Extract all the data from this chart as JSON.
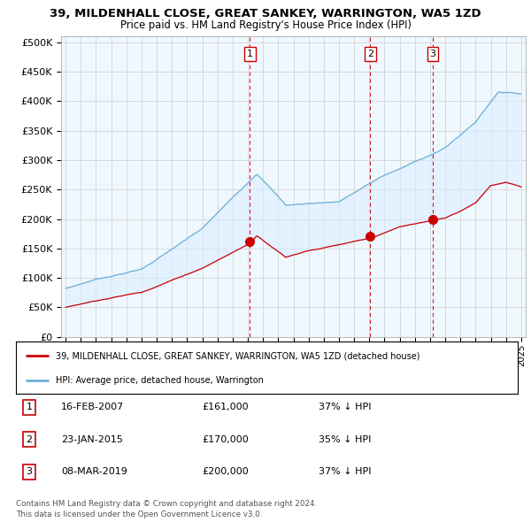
{
  "title_line1": "39, MILDENHALL CLOSE, GREAT SANKEY, WARRINGTON, WA5 1ZD",
  "title_line2": "Price paid vs. HM Land Registry's House Price Index (HPI)",
  "ylabel_ticks": [
    "£0",
    "£50K",
    "£100K",
    "£150K",
    "£200K",
    "£250K",
    "£300K",
    "£350K",
    "£400K",
    "£450K",
    "£500K"
  ],
  "ytick_values": [
    0,
    50000,
    100000,
    150000,
    200000,
    250000,
    300000,
    350000,
    400000,
    450000,
    500000
  ],
  "ylim": [
    0,
    510000
  ],
  "xlim_start": 1994.7,
  "xlim_end": 2025.3,
  "xtick_years": [
    1995,
    1996,
    1997,
    1998,
    1999,
    2000,
    2001,
    2002,
    2003,
    2004,
    2005,
    2006,
    2007,
    2008,
    2009,
    2010,
    2011,
    2012,
    2013,
    2014,
    2015,
    2016,
    2017,
    2018,
    2019,
    2020,
    2021,
    2022,
    2023,
    2024,
    2025
  ],
  "hpi_color": "#6baed6",
  "hpi_fill_color": "#ddeeff",
  "sale_color": "#cc0000",
  "vline_color": "#cc0000",
  "vline_style": "--",
  "sale_points": [
    {
      "year": 2007.13,
      "value": 161000,
      "label": "1"
    },
    {
      "year": 2015.07,
      "value": 170000,
      "label": "2"
    },
    {
      "year": 2019.19,
      "value": 200000,
      "label": "3"
    }
  ],
  "legend_sale_text": "39, MILDENHALL CLOSE, GREAT SANKEY, WARRINGTON, WA5 1ZD (detached house)",
  "legend_hpi_text": "HPI: Average price, detached house, Warrington",
  "table_rows": [
    {
      "num": "1",
      "date": "16-FEB-2007",
      "price": "£161,000",
      "hpi": "37% ↓ HPI"
    },
    {
      "num": "2",
      "date": "23-JAN-2015",
      "price": "£170,000",
      "hpi": "35% ↓ HPI"
    },
    {
      "num": "3",
      "date": "08-MAR-2019",
      "price": "£200,000",
      "hpi": "37% ↓ HPI"
    }
  ],
  "footnote_line1": "Contains HM Land Registry data © Crown copyright and database right 2024.",
  "footnote_line2": "This data is licensed under the Open Government Licence v3.0.",
  "background_color": "#ffffff",
  "grid_color": "#cccccc",
  "chart_bg": "#f0f8ff"
}
